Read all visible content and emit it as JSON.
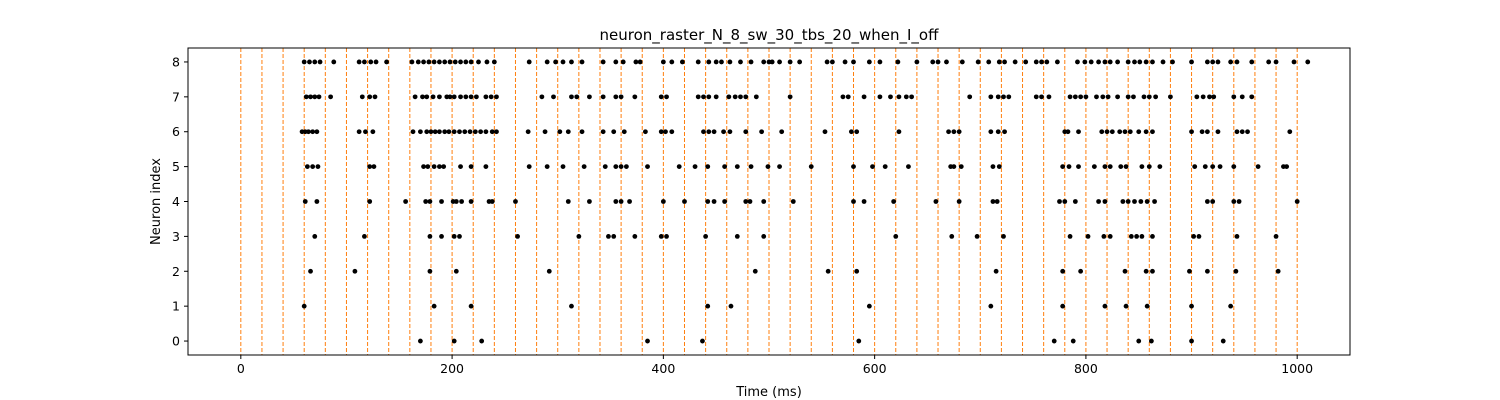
{
  "chart_data": {
    "type": "scatter",
    "title": "neuron_raster_N_8_sw_30_tbs_20_when_I_off",
    "xlabel": "Time (ms)",
    "ylabel": "Neuron index",
    "xlim": [
      -50,
      1050
    ],
    "ylim": [
      -0.4,
      8.4
    ],
    "xticks": [
      0,
      200,
      400,
      600,
      800,
      1000
    ],
    "yticks": [
      0,
      1,
      2,
      3,
      4,
      5,
      6,
      7,
      8
    ],
    "grid": false,
    "colors": {
      "points": "#000000",
      "markers": "#ff7f0e"
    },
    "time_markers": [
      0,
      20,
      40,
      60,
      80,
      100,
      120,
      140,
      160,
      180,
      200,
      220,
      240,
      260,
      280,
      300,
      320,
      340,
      360,
      380,
      400,
      420,
      440,
      460,
      480,
      500,
      520,
      540,
      560,
      580,
      600,
      620,
      640,
      660,
      680,
      700,
      720,
      740,
      760,
      780,
      800,
      820,
      840,
      860,
      880,
      900,
      920,
      940,
      960,
      980,
      1000
    ],
    "spikes": [
      {
        "neuron": 0,
        "times": [
          170,
          202,
          228,
          385,
          437,
          585,
          770,
          788,
          850,
          862,
          900,
          930
        ]
      },
      {
        "neuron": 1,
        "times": [
          60,
          183,
          218,
          313,
          442,
          464,
          595,
          710,
          778,
          818,
          838,
          858,
          900,
          937
        ]
      },
      {
        "neuron": 2,
        "times": [
          66,
          108,
          179,
          204,
          292,
          487,
          556,
          583,
          715,
          778,
          795,
          837,
          857,
          863,
          898,
          915,
          942,
          982
        ]
      },
      {
        "neuron": 3,
        "times": [
          70,
          117,
          179,
          190,
          202,
          207,
          262,
          320,
          348,
          353,
          373,
          398,
          403,
          440,
          470,
          495,
          620,
          673,
          697,
          722,
          785,
          802,
          817,
          823,
          843,
          848,
          853,
          863,
          902,
          907,
          943,
          980
        ]
      },
      {
        "neuron": 4,
        "times": [
          61,
          72,
          122,
          156,
          175,
          179,
          190,
          201,
          204,
          209,
          218,
          235,
          238,
          260,
          310,
          330,
          355,
          360,
          368,
          400,
          420,
          442,
          448,
          458,
          478,
          482,
          495,
          523,
          580,
          590,
          618,
          658,
          680,
          712,
          716,
          775,
          780,
          790,
          812,
          818,
          835,
          840,
          846,
          852,
          858,
          865,
          915,
          920,
          940,
          945,
          1000
        ]
      },
      {
        "neuron": 5,
        "times": [
          63,
          68,
          73,
          122,
          126,
          173,
          177,
          183,
          188,
          192,
          208,
          218,
          232,
          273,
          290,
          305,
          325,
          345,
          355,
          360,
          365,
          385,
          415,
          430,
          442,
          458,
          470,
          483,
          499,
          510,
          540,
          580,
          598,
          610,
          632,
          672,
          675,
          682,
          712,
          718,
          778,
          784,
          793,
          808,
          818,
          823,
          833,
          838,
          853,
          860,
          870,
          903,
          913,
          920,
          927,
          940,
          963,
          987,
          990
        ]
      },
      {
        "neuron": 6,
        "times": [
          58,
          61,
          64,
          68,
          72,
          112,
          118,
          125,
          163,
          170,
          176,
          180,
          184,
          188,
          193,
          197,
          202,
          207,
          212,
          217,
          222,
          227,
          232,
          238,
          242,
          272,
          288,
          302,
          310,
          323,
          343,
          353,
          363,
          383,
          398,
          402,
          408,
          438,
          443,
          448,
          457,
          463,
          478,
          493,
          512,
          553,
          578,
          583,
          623,
          670,
          675,
          680,
          710,
          717,
          723,
          780,
          783,
          793,
          815,
          820,
          825,
          832,
          837,
          842,
          850,
          857,
          863,
          900,
          910,
          915,
          925,
          943,
          948,
          953,
          993
        ]
      },
      {
        "neuron": 7,
        "times": [
          62,
          66,
          70,
          74,
          85,
          115,
          122,
          127,
          165,
          172,
          176,
          182,
          188,
          195,
          198,
          202,
          208,
          213,
          218,
          223,
          232,
          237,
          242,
          285,
          296,
          313,
          318,
          330,
          343,
          355,
          360,
          373,
          398,
          403,
          433,
          438,
          443,
          450,
          462,
          468,
          473,
          478,
          488,
          520,
          570,
          575,
          590,
          605,
          615,
          623,
          630,
          635,
          690,
          710,
          717,
          722,
          727,
          753,
          758,
          765,
          785,
          790,
          795,
          800,
          810,
          816,
          821,
          830,
          840,
          845,
          855,
          860,
          866,
          880,
          905,
          911,
          917,
          921,
          940,
          948,
          957
        ]
      },
      {
        "neuron": 8,
        "times": [
          60,
          65,
          70,
          75,
          88,
          112,
          117,
          123,
          128,
          138,
          162,
          168,
          173,
          178,
          183,
          188,
          193,
          198,
          203,
          208,
          213,
          218,
          225,
          233,
          240,
          273,
          290,
          298,
          305,
          313,
          323,
          343,
          355,
          362,
          374,
          378,
          400,
          408,
          418,
          433,
          443,
          450,
          455,
          463,
          473,
          483,
          495,
          500,
          503,
          510,
          520,
          529,
          555,
          560,
          572,
          580,
          595,
          605,
          622,
          640,
          655,
          660,
          668,
          683,
          698,
          708,
          718,
          723,
          733,
          743,
          753,
          758,
          763,
          773,
          792,
          799,
          805,
          812,
          818,
          823,
          830,
          840,
          846,
          851,
          857,
          863,
          873,
          882,
          900,
          915,
          920,
          925,
          937,
          943,
          957,
          973,
          980,
          997,
          1010
        ]
      }
    ]
  }
}
